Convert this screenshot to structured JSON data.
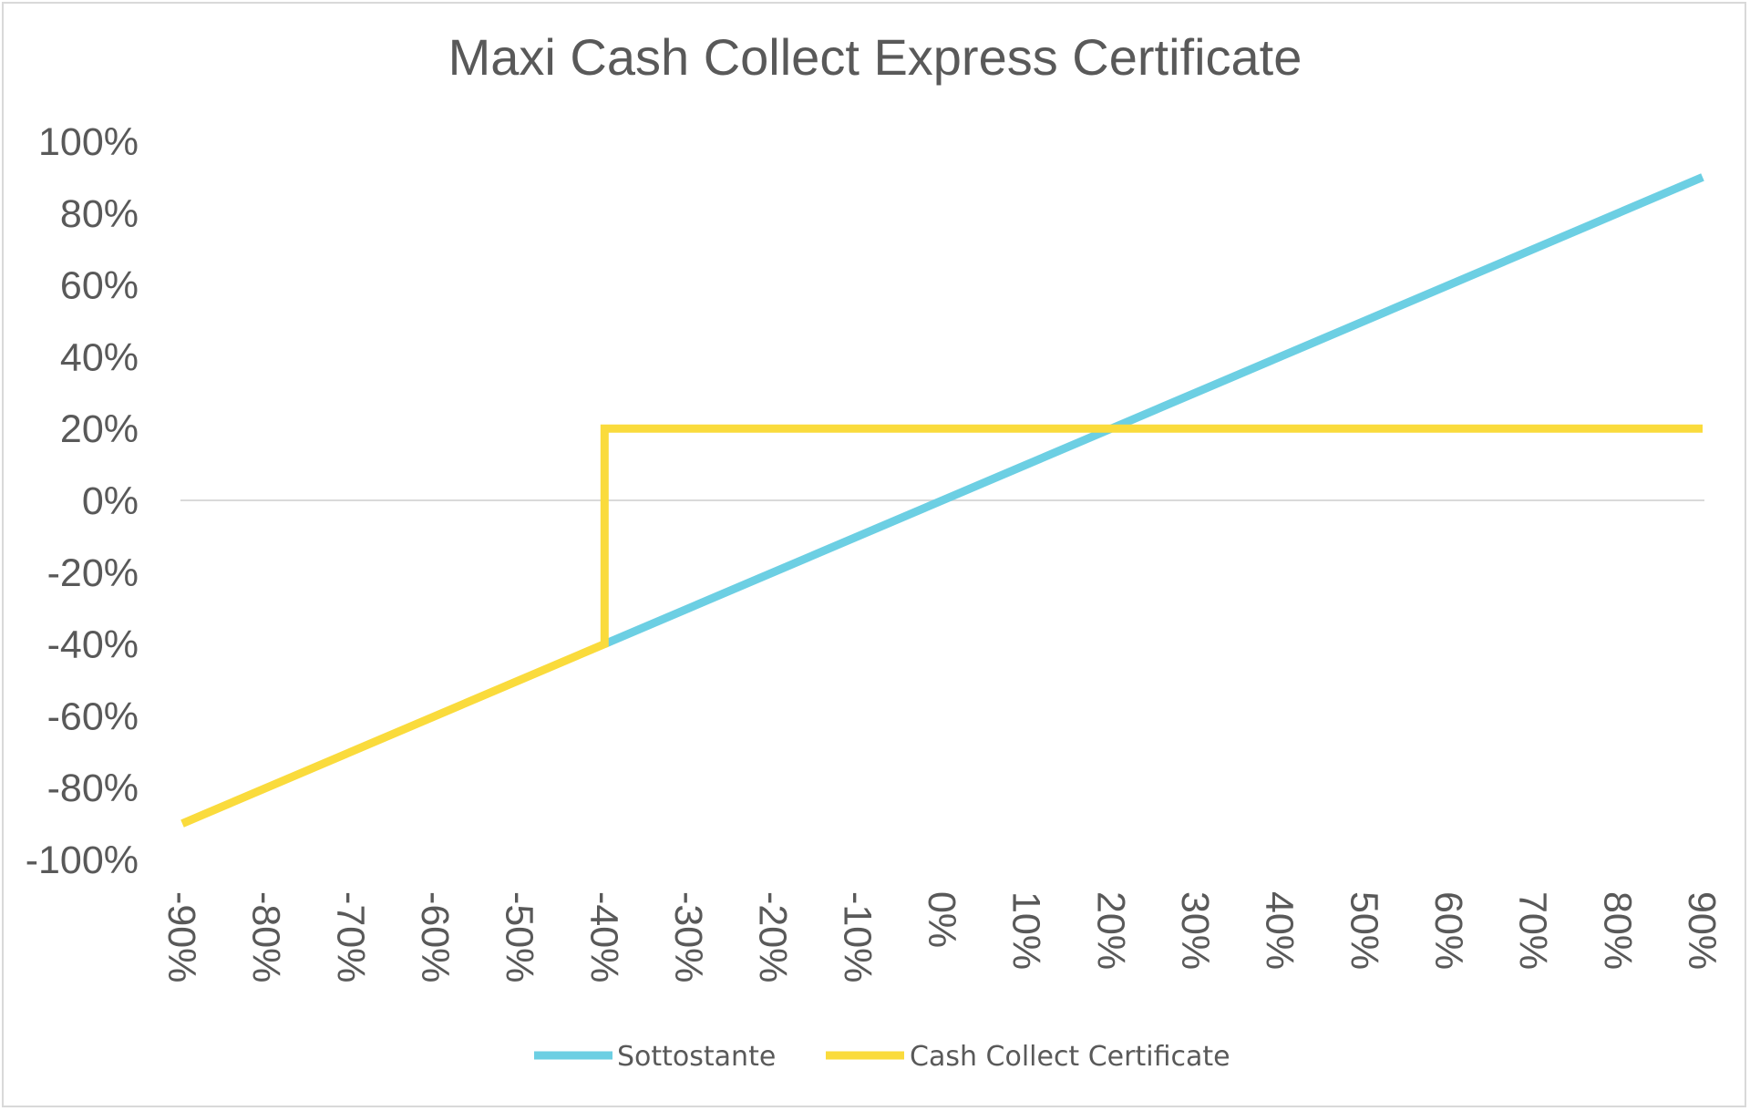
{
  "chart_data": {
    "type": "line",
    "title": "Maxi Cash Collect Express Certificate",
    "xlabel": "",
    "ylabel": "",
    "x": [
      -90,
      -80,
      -70,
      -60,
      -50,
      -40,
      -30,
      -20,
      -10,
      0,
      10,
      20,
      30,
      40,
      50,
      60,
      70,
      80,
      90
    ],
    "x_tick_labels": [
      "-90%",
      "-80%",
      "-70%",
      "-60%",
      "-50%",
      "-40%",
      "-30%",
      "-20%",
      "-10%",
      "0%",
      "10%",
      "20%",
      "30%",
      "40%",
      "50%",
      "60%",
      "70%",
      "80%",
      "90%"
    ],
    "xlim": [
      -90,
      90
    ],
    "ylim": [
      -100,
      100
    ],
    "y_ticks": [
      100,
      80,
      60,
      40,
      20,
      0,
      -20,
      -40,
      -60,
      -80,
      -100
    ],
    "y_tick_labels": [
      "100%",
      "80%",
      "60%",
      "40%",
      "20%",
      "0%",
      "-20%",
      "-40%",
      "-60%",
      "-80%",
      "-100%"
    ],
    "zero_line": true,
    "grid": false,
    "legend_position": "bottom",
    "series": [
      {
        "name": "Sottostante",
        "color": "#6ccfe3",
        "points": [
          [
            -40,
            -40
          ],
          [
            90,
            90
          ]
        ]
      },
      {
        "name": "Cash Collect Certificate",
        "color": "#fadb3c",
        "points": [
          [
            -90,
            -90
          ],
          [
            -40,
            -40
          ],
          [
            -40,
            20
          ],
          [
            90,
            20
          ]
        ]
      }
    ]
  }
}
